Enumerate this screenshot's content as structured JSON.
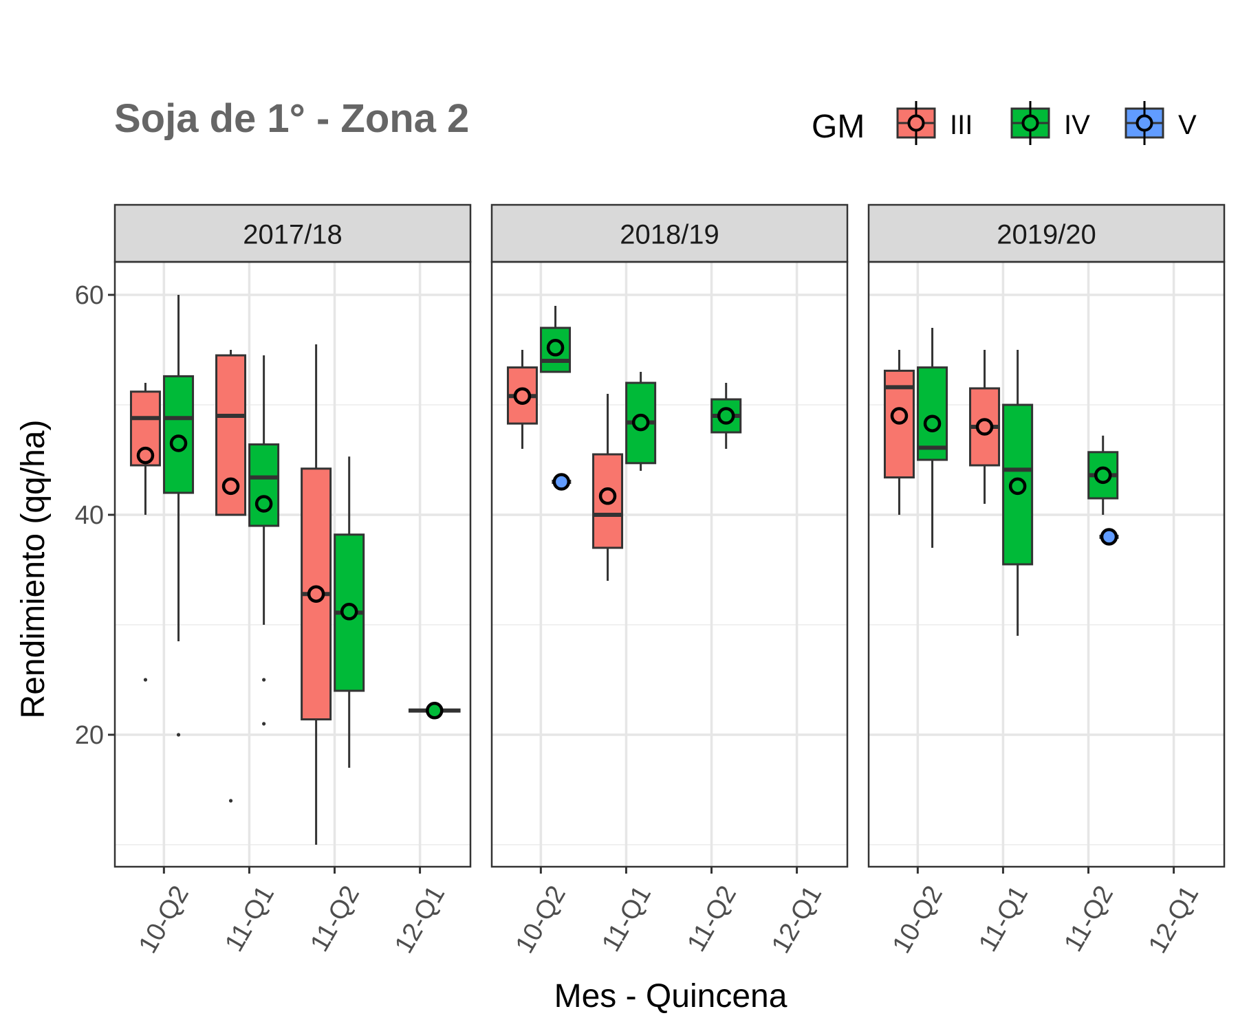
{
  "chart_data": {
    "type": "boxplot",
    "title": "Soja de 1° - Zona 2",
    "xlabel": "Mes - Quincena",
    "ylabel": "Rendimiento (qq/ha)",
    "categories": [
      "10-Q2",
      "11-Q1",
      "11-Q2",
      "12-Q1"
    ],
    "ylim": [
      8,
      63
    ],
    "yticks": [
      20,
      40,
      60
    ],
    "grid": true,
    "legend": {
      "title": "GM",
      "position": "top-right",
      "entries": [
        {
          "name": "III",
          "color": "#F8766D"
        },
        {
          "name": "IV",
          "color": "#00BA38"
        },
        {
          "name": "V",
          "color": "#619CFF"
        }
      ]
    },
    "groups": [
      "III",
      "IV",
      "V"
    ],
    "colors": {
      "III": "#F8766D",
      "IV": "#00BA38",
      "V": "#619CFF"
    },
    "panels": [
      {
        "label": "2017/18",
        "boxes": [
          {
            "category": "10-Q2",
            "group": "III",
            "min": 40,
            "q1": 44.5,
            "median": 48.8,
            "q3": 51.2,
            "max": 52,
            "mean": 45.4,
            "outliers": [
              25
            ]
          },
          {
            "category": "10-Q2",
            "group": "IV",
            "min": 28.5,
            "q1": 42,
            "median": 48.8,
            "q3": 52.6,
            "max": 60,
            "mean": 46.5,
            "outliers": [
              20
            ]
          },
          {
            "category": "11-Q1",
            "group": "III",
            "min": 40,
            "q1": 40,
            "median": 49,
            "q3": 54.5,
            "max": 55,
            "mean": 42.6,
            "outliers": [
              14
            ]
          },
          {
            "category": "11-Q1",
            "group": "IV",
            "min": 30,
            "q1": 39,
            "median": 43.4,
            "q3": 46.4,
            "max": 54.5,
            "mean": 41,
            "outliers": [
              25,
              21
            ]
          },
          {
            "category": "11-Q2",
            "group": "III",
            "min": 10,
            "q1": 21.4,
            "median": 32.8,
            "q3": 44.2,
            "max": 55.5,
            "mean": 32.8,
            "outliers": []
          },
          {
            "category": "11-Q2",
            "group": "IV",
            "min": 17,
            "q1": 24,
            "median": 31.1,
            "q3": 38.2,
            "max": 45.3,
            "mean": 31.2,
            "outliers": []
          },
          {
            "category": "12-Q1",
            "group": "IV",
            "min": 22.2,
            "q1": 22.2,
            "median": 22.2,
            "q3": 22.2,
            "max": 22.2,
            "mean": 22.2,
            "outliers": []
          }
        ]
      },
      {
        "label": "2018/19",
        "boxes": [
          {
            "category": "10-Q2",
            "group": "III",
            "min": 46,
            "q1": 48.3,
            "median": 50.8,
            "q3": 53.4,
            "max": 55,
            "mean": 50.8,
            "outliers": []
          },
          {
            "category": "10-Q2",
            "group": "IV",
            "min": 53,
            "q1": 53,
            "median": 54,
            "q3": 57,
            "max": 59,
            "mean": 55.2,
            "outliers": []
          },
          {
            "category": "10-Q2",
            "group": "V",
            "min": 43,
            "q1": 43,
            "median": 43,
            "q3": 43,
            "max": 43,
            "mean": 43,
            "outliers": []
          },
          {
            "category": "11-Q1",
            "group": "III",
            "min": 34,
            "q1": 37,
            "median": 40,
            "q3": 45.5,
            "max": 51,
            "mean": 41.7,
            "outliers": []
          },
          {
            "category": "11-Q1",
            "group": "IV",
            "min": 44,
            "q1": 44.7,
            "median": 48.4,
            "q3": 52,
            "max": 53,
            "mean": 48.4,
            "outliers": []
          },
          {
            "category": "11-Q2",
            "group": "IV",
            "min": 46,
            "q1": 47.5,
            "median": 49,
            "q3": 50.5,
            "max": 52,
            "mean": 49,
            "outliers": []
          }
        ]
      },
      {
        "label": "2019/20",
        "boxes": [
          {
            "category": "10-Q2",
            "group": "III",
            "min": 40,
            "q1": 43.4,
            "median": 51.6,
            "q3": 53.1,
            "max": 55,
            "mean": 49,
            "outliers": []
          },
          {
            "category": "10-Q2",
            "group": "IV",
            "min": 37,
            "q1": 45,
            "median": 46.1,
            "q3": 53.4,
            "max": 57,
            "mean": 48.3,
            "outliers": []
          },
          {
            "category": "11-Q1",
            "group": "III",
            "min": 41,
            "q1": 44.5,
            "median": 48,
            "q3": 51.5,
            "max": 55,
            "mean": 48,
            "outliers": []
          },
          {
            "category": "11-Q1",
            "group": "IV",
            "min": 29,
            "q1": 35.5,
            "median": 44.1,
            "q3": 50,
            "max": 55,
            "mean": 42.6,
            "outliers": []
          },
          {
            "category": "11-Q2",
            "group": "IV",
            "min": 40,
            "q1": 41.5,
            "median": 43.6,
            "q3": 45.7,
            "max": 47.2,
            "mean": 43.6,
            "outliers": []
          },
          {
            "category": "11-Q2",
            "group": "V",
            "min": 38,
            "q1": 38,
            "median": 38,
            "q3": 38,
            "max": 38,
            "mean": 38,
            "outliers": []
          }
        ]
      }
    ]
  }
}
